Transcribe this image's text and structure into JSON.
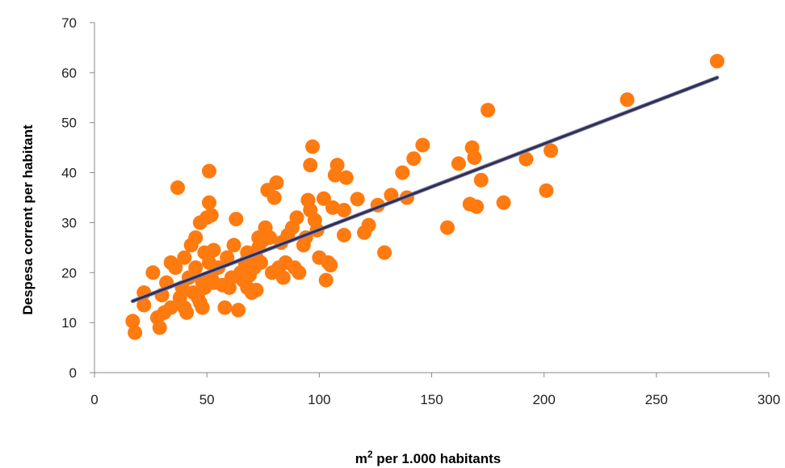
{
  "chart_data": {
    "type": "scatter",
    "xlabel": "m² per 1.000 habitants",
    "xlabel_main": "m",
    "xlabel_sup": "2",
    "xlabel_rest": " per 1.000 habitants",
    "ylabel": "Despesa corrent per habitant",
    "xlim": [
      0,
      300
    ],
    "ylim": [
      0,
      70
    ],
    "xticks": [
      0,
      50,
      100,
      150,
      200,
      250,
      300
    ],
    "yticks": [
      0,
      10,
      20,
      30,
      40,
      50,
      60,
      70
    ],
    "grid": false,
    "legend": "none",
    "colors": {
      "points": "#FF7A0F",
      "trendline": "#2E2E58",
      "axis": "#888888"
    },
    "trendline": {
      "x": [
        17,
        277
      ],
      "y": [
        14.3,
        59.0
      ]
    },
    "points": [
      [
        17,
        10.3
      ],
      [
        18,
        8
      ],
      [
        22,
        16
      ],
      [
        22,
        13.5
      ],
      [
        26,
        20
      ],
      [
        28,
        11
      ],
      [
        29,
        9
      ],
      [
        30,
        15.5
      ],
      [
        31,
        12
      ],
      [
        32,
        18
      ],
      [
        34,
        13
      ],
      [
        34,
        22
      ],
      [
        36,
        21
      ],
      [
        37,
        37
      ],
      [
        38,
        15
      ],
      [
        39,
        17
      ],
      [
        40,
        13
      ],
      [
        40,
        23
      ],
      [
        41,
        12
      ],
      [
        42,
        19
      ],
      [
        43,
        25.5
      ],
      [
        44,
        16
      ],
      [
        45,
        27
      ],
      [
        45,
        21
      ],
      [
        46,
        15
      ],
      [
        47,
        14
      ],
      [
        47,
        30
      ],
      [
        48,
        13
      ],
      [
        48,
        18
      ],
      [
        49,
        24
      ],
      [
        49,
        17
      ],
      [
        50,
        31
      ],
      [
        51,
        40.3
      ],
      [
        51,
        34
      ],
      [
        51,
        22
      ],
      [
        52,
        31.5
      ],
      [
        52,
        19
      ],
      [
        53,
        24.5
      ],
      [
        53,
        18
      ],
      [
        55,
        21
      ],
      [
        57,
        17.5
      ],
      [
        58,
        13
      ],
      [
        59,
        23
      ],
      [
        60,
        17
      ],
      [
        61,
        19
      ],
      [
        62,
        25.5
      ],
      [
        63,
        30.7
      ],
      [
        64,
        12.5
      ],
      [
        65,
        20
      ],
      [
        66,
        18.5
      ],
      [
        67,
        22
      ],
      [
        68,
        24
      ],
      [
        68,
        17
      ],
      [
        69,
        19.5
      ],
      [
        70,
        16
      ],
      [
        71,
        21
      ],
      [
        72,
        23
      ],
      [
        72,
        16.5
      ],
      [
        73,
        27
      ],
      [
        73,
        25
      ],
      [
        74,
        22
      ],
      [
        75,
        26.5
      ],
      [
        76,
        29
      ],
      [
        77,
        36.5
      ],
      [
        78,
        27
      ],
      [
        79,
        20
      ],
      [
        80,
        35
      ],
      [
        81,
        38
      ],
      [
        82,
        21
      ],
      [
        83,
        26
      ],
      [
        84,
        19
      ],
      [
        85,
        22
      ],
      [
        86,
        27.5
      ],
      [
        88,
        29
      ],
      [
        89,
        21
      ],
      [
        90,
        31
      ],
      [
        91,
        20
      ],
      [
        93,
        25.5
      ],
      [
        94,
        27
      ],
      [
        95,
        34.5
      ],
      [
        96,
        32.5
      ],
      [
        96,
        41.5
      ],
      [
        97,
        45.2
      ],
      [
        98,
        30.5
      ],
      [
        99,
        28.5
      ],
      [
        100,
        23
      ],
      [
        102,
        34.8
      ],
      [
        103,
        18.5
      ],
      [
        104,
        22
      ],
      [
        105,
        21.5
      ],
      [
        106,
        33
      ],
      [
        107,
        39.5
      ],
      [
        108,
        41.5
      ],
      [
        111,
        32.5
      ],
      [
        111,
        27.5
      ],
      [
        112,
        39
      ],
      [
        117,
        34.7
      ],
      [
        120,
        28
      ],
      [
        122,
        29.5
      ],
      [
        126,
        33.5
      ],
      [
        129,
        24
      ],
      [
        132,
        35.5
      ],
      [
        137,
        40
      ],
      [
        139,
        35
      ],
      [
        142,
        42.8
      ],
      [
        146,
        45.5
      ],
      [
        157,
        29
      ],
      [
        162,
        41.8
      ],
      [
        167,
        33.7
      ],
      [
        168,
        45
      ],
      [
        169,
        43
      ],
      [
        170,
        33.2
      ],
      [
        172,
        38.5
      ],
      [
        175,
        52.5
      ],
      [
        182,
        34
      ],
      [
        192,
        42.7
      ],
      [
        201,
        36.4
      ],
      [
        203,
        44.4
      ],
      [
        237,
        54.6
      ],
      [
        277,
        62.3
      ]
    ]
  }
}
